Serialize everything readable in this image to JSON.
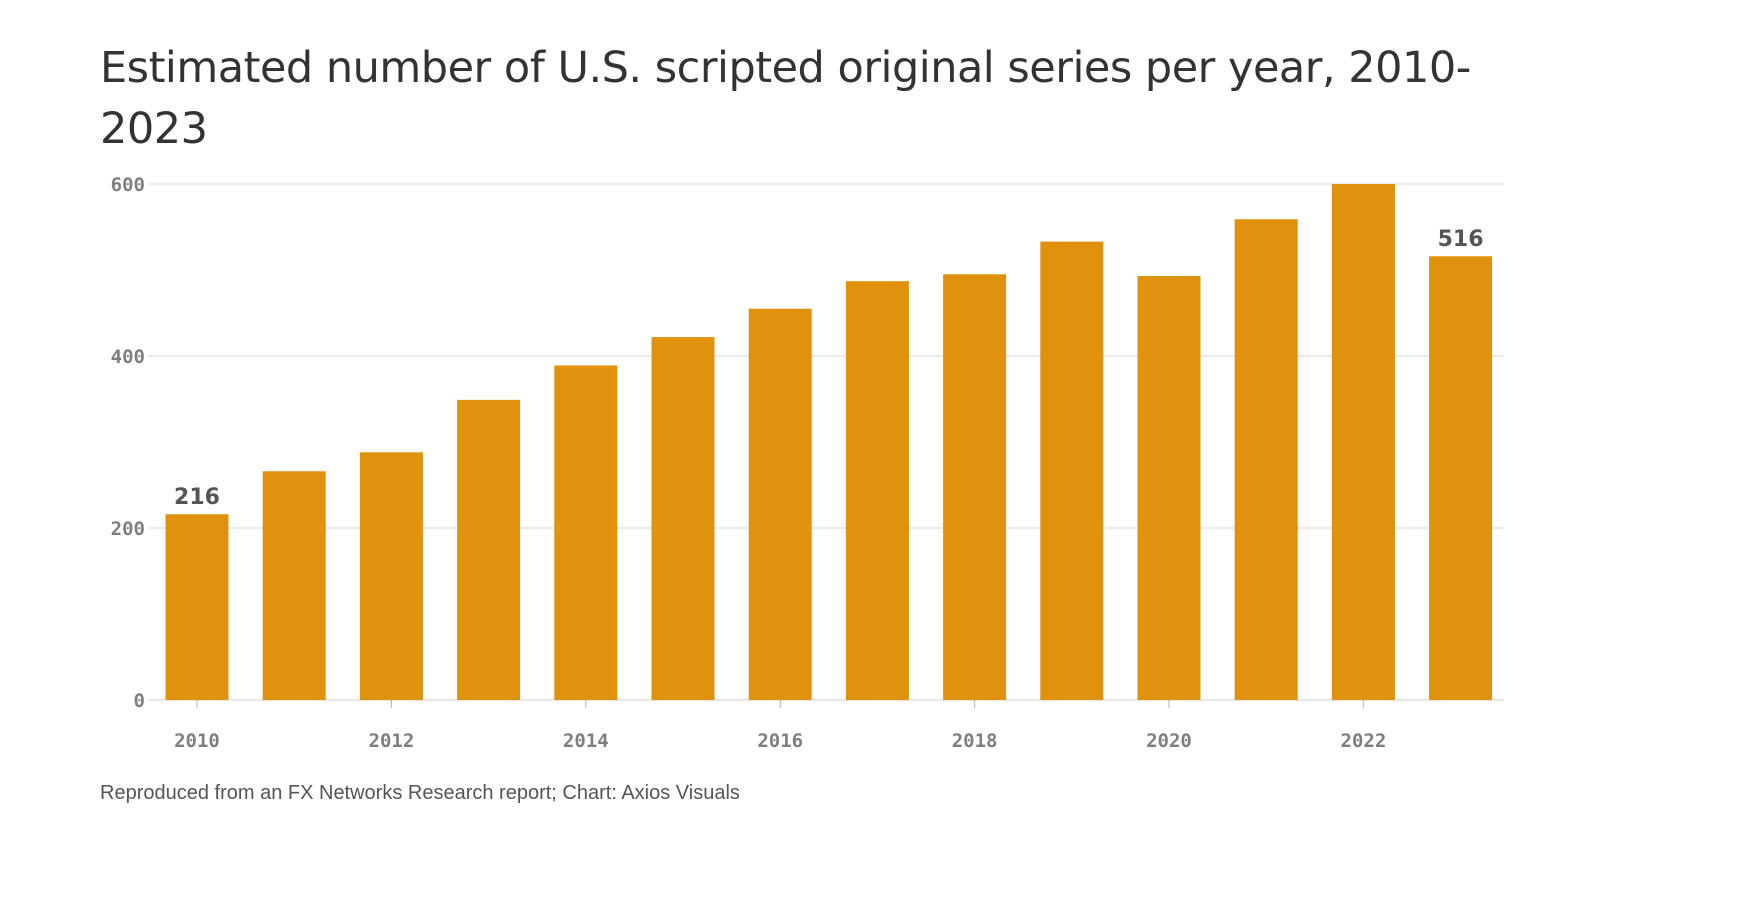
{
  "title": "Estimated number of U.S. scripted original series per year, 2010-2023",
  "source": "Reproduced from an FX Networks Research report; Chart: Axios Visuals",
  "colors": {
    "bar": "#e0920f",
    "title": "#333333",
    "tick": "#7f7f7f",
    "grid": "#dedede"
  },
  "chart_data": {
    "type": "bar",
    "categories": [
      "2010",
      "2011",
      "2012",
      "2013",
      "2014",
      "2015",
      "2016",
      "2017",
      "2018",
      "2019",
      "2020",
      "2021",
      "2022",
      "2023"
    ],
    "values": [
      216,
      266,
      288,
      349,
      389,
      422,
      455,
      487,
      495,
      533,
      493,
      559,
      600,
      516
    ],
    "ylim": [
      0,
      600
    ],
    "yticks": [
      0,
      200,
      400,
      600
    ],
    "xtick_labels": [
      "2010",
      "2012",
      "2014",
      "2016",
      "2018",
      "2020",
      "2022"
    ],
    "data_labels": [
      {
        "category": "2010",
        "text": "216"
      },
      {
        "category": "2023",
        "text": "516"
      }
    ],
    "grid": true,
    "legend": "none"
  }
}
